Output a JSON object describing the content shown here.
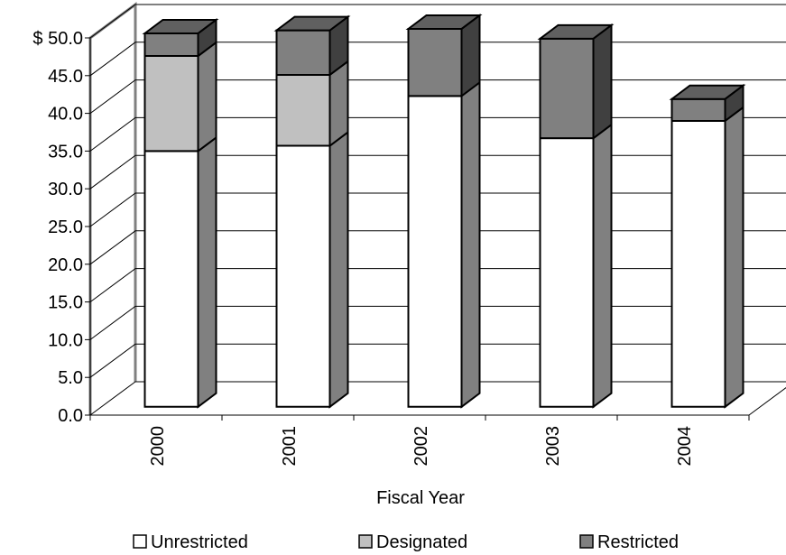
{
  "chart_data": {
    "type": "bar",
    "stacked": true,
    "three_d": true,
    "title": "",
    "xlabel": "Fiscal Year",
    "ylabel": "",
    "ylim": [
      0,
      50
    ],
    "y_tick_step": 5,
    "y_tick_labels": [
      "0.0",
      "5.0",
      "10.0",
      "15.0",
      "20.0",
      "25.0",
      "30.0",
      "35.0",
      "40.0",
      "45.0",
      "$ 50.0"
    ],
    "grid": true,
    "legend_position": "bottom",
    "categories": [
      "2000",
      "2001",
      "2002",
      "2003",
      "2004"
    ],
    "series": [
      {
        "name": "Unrestricted",
        "values": [
          33.9,
          34.6,
          41.2,
          35.6,
          37.9
        ],
        "color": "#ffffff",
        "side_color": "#808080",
        "top_color": "#808080"
      },
      {
        "name": "Designated",
        "values": [
          12.6,
          9.4,
          0,
          0,
          0
        ],
        "color": "#c0c0c0",
        "side_color": "#808080",
        "top_color": "#a0a0a0"
      },
      {
        "name": "Restricted",
        "values": [
          3.0,
          5.9,
          8.9,
          13.2,
          2.9
        ],
        "color": "#808080",
        "side_color": "#404040",
        "top_color": "#606060"
      }
    ]
  }
}
